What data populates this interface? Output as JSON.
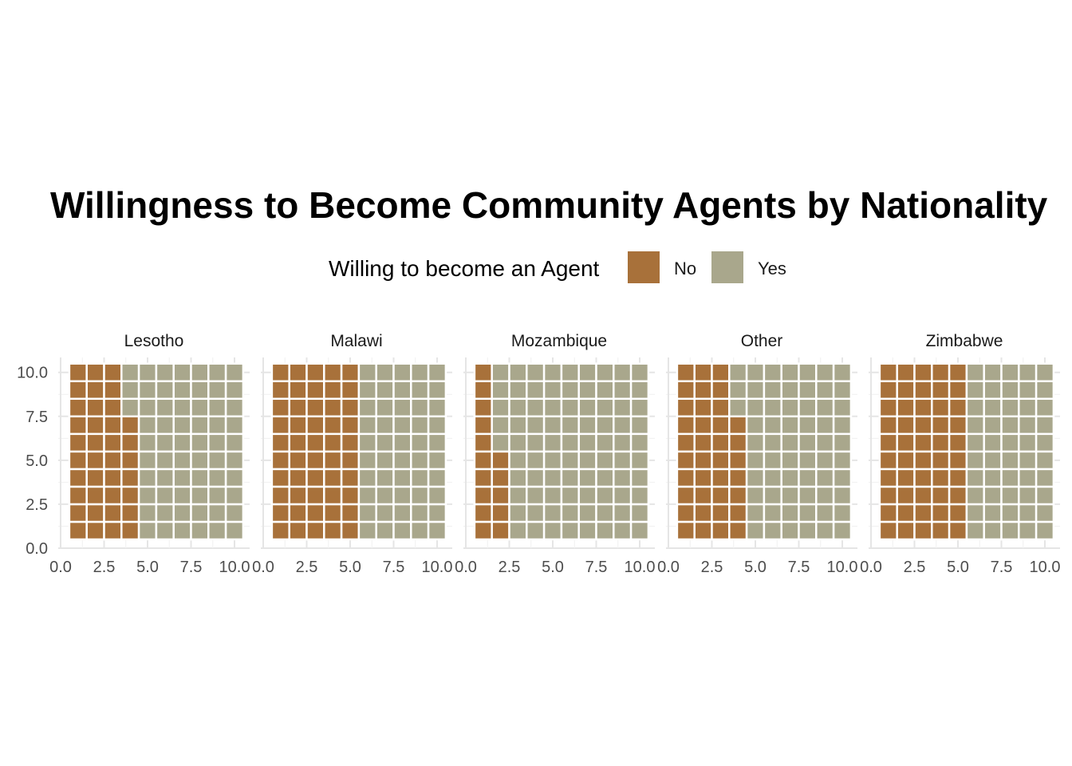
{
  "chart_data": {
    "type": "waffle",
    "title": "Willingness to Become Community Agents by Nationality",
    "legend": {
      "title": "Willing to become an Agent",
      "position": "top",
      "items": [
        {
          "label": "No",
          "color": "#a8713a"
        },
        {
          "label": "Yes",
          "color": "#a9a78c"
        }
      ]
    },
    "grid": {
      "rows": 10,
      "cols": 10,
      "fill_order": "column-major, bottom-up"
    },
    "xlim": [
      0,
      10
    ],
    "ylim": [
      0,
      10
    ],
    "x_ticks": [
      "0.0",
      "2.5",
      "5.0",
      "7.5",
      "10.0"
    ],
    "y_ticks": [
      "0.0",
      "2.5",
      "5.0",
      "7.5",
      "10.0"
    ],
    "gridlines": true,
    "panels": [
      {
        "name": "Lesotho",
        "No": 37,
        "Yes": 63
      },
      {
        "name": "Malawi",
        "No": 50,
        "Yes": 50
      },
      {
        "name": "Mozambique",
        "No": 15,
        "Yes": 85
      },
      {
        "name": "Other",
        "No": 37,
        "Yes": 63
      },
      {
        "name": "Zimbabwe",
        "No": 50,
        "Yes": 50
      }
    ]
  }
}
